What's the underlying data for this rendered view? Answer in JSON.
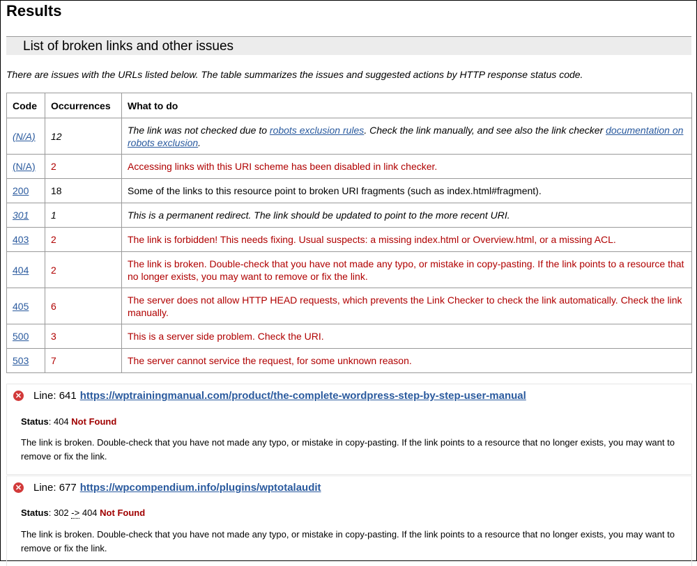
{
  "title": "Results",
  "section": "List of broken links and other issues",
  "intro": "There are issues with the URLs listed below. The table summarizes the issues and suggested actions by HTTP response status code.",
  "table": {
    "headers": [
      "Code",
      "Occurrences",
      "What to do"
    ],
    "rows": [
      {
        "code": "(N/A)",
        "occ": "12",
        "style": "it",
        "parts": [
          {
            "t": "The link was not checked due to "
          },
          {
            "t": "robots exclusion rules",
            "link": true
          },
          {
            "t": ". Check the link manually, and see also the link checker "
          },
          {
            "t": "documentation on robots exclusion",
            "link": true
          },
          {
            "t": "."
          }
        ]
      },
      {
        "code": "(N/A)",
        "occ": "2",
        "style": "red",
        "parts": [
          {
            "t": "Accessing links with this URI scheme has been disabled in link checker."
          }
        ]
      },
      {
        "code": "200",
        "occ": "18",
        "style": "norm",
        "parts": [
          {
            "t": "Some of the links to this resource point to broken URI fragments (such as index.html#fragment)."
          }
        ]
      },
      {
        "code": "301",
        "occ": "1",
        "style": "it",
        "parts": [
          {
            "t": "This is a permanent redirect. The link should be updated to point to the more recent URI."
          }
        ]
      },
      {
        "code": "403",
        "occ": "2",
        "style": "red",
        "parts": [
          {
            "t": "The link is forbidden! This needs fixing. Usual suspects: a missing index.html or Overview.html, or a missing ACL."
          }
        ]
      },
      {
        "code": "404",
        "occ": "2",
        "style": "red",
        "parts": [
          {
            "t": "The link is broken. Double-check that you have not made any typo, or mistake in copy-pasting. If the link points to a resource that no longer exists, you may want to remove or fix the link."
          }
        ]
      },
      {
        "code": "405",
        "occ": "6",
        "style": "red",
        "parts": [
          {
            "t": "The server does not allow HTTP HEAD requests, which prevents the Link Checker to check the link automatically. Check the link manually."
          }
        ]
      },
      {
        "code": "500",
        "occ": "3",
        "style": "red",
        "parts": [
          {
            "t": "This is a server side problem. Check the URI."
          }
        ]
      },
      {
        "code": "503",
        "occ": "7",
        "style": "red",
        "parts": [
          {
            "t": "The server cannot service the request, for some unknown reason."
          }
        ]
      }
    ]
  },
  "issues": [
    {
      "line_label": "Line: 641",
      "url": "https://wptrainingmanual.com/product/the-complete-wordpress-step-by-step-user-manual",
      "status_label": "Status",
      "status_prefix": "404",
      "status_text": "Not Found",
      "message": "The link is broken. Double-check that you have not made any typo, or mistake in copy-pasting. If the link points to a resource that no longer exists, you may want to remove or fix the link."
    },
    {
      "line_label": "Line: 677",
      "url": "https://wpcompendium.info/plugins/wptotalaudit",
      "status_label": "Status",
      "status_prefix": "302",
      "status_arrow": "->",
      "status_code": "404",
      "status_text": "Not Found",
      "message": "The link is broken. Double-check that you have not made any typo, or mistake in copy-pasting. If the link points to a resource that no longer exists, you may want to remove or fix the link."
    }
  ],
  "colors": {
    "link": "#2a5a9e",
    "error": "#b00000",
    "section_bg": "#ececec"
  }
}
